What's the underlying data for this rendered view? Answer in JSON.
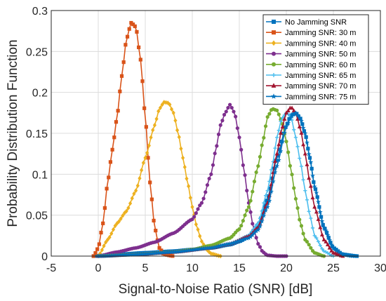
{
  "chart_data": {
    "type": "line",
    "xlabel": "Signal-to-Noise Ratio (SNR) [dB]",
    "ylabel": "Probability Distribution Function",
    "xlim": [
      -5,
      30
    ],
    "ylim": [
      0,
      0.3
    ],
    "xticks": [
      -5,
      0,
      5,
      10,
      15,
      20,
      25,
      30
    ],
    "yticks": [
      0,
      0.05,
      0.1,
      0.15,
      0.2,
      0.25,
      0.3
    ],
    "xtick_labels": [
      "-5",
      "0",
      "5",
      "10",
      "15",
      "20",
      "25",
      "30"
    ],
    "ytick_labels": [
      "0",
      "0.05",
      "0.1",
      "0.15",
      "0.2",
      "0.25",
      "0.3"
    ],
    "grid": true,
    "legend_position": "top-right",
    "series": [
      {
        "name": "No Jamming SNR",
        "color": "#0072BD",
        "marker": "square",
        "x": [
          -0.5,
          2,
          5,
          8,
          10,
          12,
          14,
          15,
          16,
          17,
          18,
          19,
          20,
          20.5,
          21,
          21.5,
          22,
          22.5,
          23,
          24,
          25,
          26,
          27.5
        ],
        "y": [
          0,
          0.002,
          0.004,
          0.006,
          0.008,
          0.01,
          0.014,
          0.018,
          0.024,
          0.038,
          0.07,
          0.12,
          0.16,
          0.172,
          0.175,
          0.168,
          0.15,
          0.12,
          0.085,
          0.035,
          0.01,
          0.002,
          0
        ]
      },
      {
        "name": "Jamming SNR: 30 m",
        "color": "#D95319",
        "marker": "square",
        "x": [
          -0.5,
          0,
          0.5,
          1,
          1.5,
          2,
          2.5,
          3,
          3.5,
          4,
          4.5,
          5,
          5.5,
          6,
          6.5,
          7,
          8
        ],
        "y": [
          0,
          0.01,
          0.04,
          0.09,
          0.13,
          0.17,
          0.22,
          0.265,
          0.285,
          0.28,
          0.24,
          0.17,
          0.09,
          0.035,
          0.01,
          0.002,
          0
        ]
      },
      {
        "name": "Jamming SNR: 40 m",
        "color": "#EDB120",
        "marker": "diamond",
        "x": [
          0,
          1,
          2,
          3,
          4,
          5,
          6,
          6.5,
          7,
          7.5,
          8,
          8.5,
          9,
          9.5,
          10,
          10.5,
          11,
          11.5,
          12,
          13
        ],
        "y": [
          0,
          0.02,
          0.04,
          0.055,
          0.08,
          0.12,
          0.16,
          0.18,
          0.188,
          0.187,
          0.175,
          0.15,
          0.12,
          0.09,
          0.06,
          0.035,
          0.018,
          0.008,
          0.003,
          0
        ]
      },
      {
        "name": "Jamming SNR: 50 m",
        "color": "#7E2F8E",
        "marker": "circle",
        "x": [
          0,
          2,
          4,
          6,
          8,
          10,
          11,
          12,
          12.5,
          13,
          13.5,
          14,
          14.5,
          15,
          15.5,
          16,
          16.5,
          17,
          17.5,
          18,
          19,
          20
        ],
        "y": [
          0,
          0.005,
          0.01,
          0.017,
          0.028,
          0.045,
          0.065,
          0.1,
          0.13,
          0.16,
          0.175,
          0.185,
          0.175,
          0.145,
          0.105,
          0.065,
          0.035,
          0.015,
          0.005,
          0.001,
          0,
          0
        ]
      },
      {
        "name": "Jamming SNR: 60 m",
        "color": "#77AC30",
        "marker": "circle",
        "x": [
          0,
          4,
          8,
          10,
          12,
          14,
          15,
          16,
          17,
          17.5,
          18,
          18.5,
          19,
          19.5,
          20,
          20.5,
          21,
          21.5,
          22,
          23,
          24
        ],
        "y": [
          0,
          0.002,
          0.005,
          0.008,
          0.013,
          0.022,
          0.033,
          0.06,
          0.11,
          0.14,
          0.17,
          0.18,
          0.178,
          0.165,
          0.14,
          0.105,
          0.07,
          0.04,
          0.02,
          0.004,
          0
        ]
      },
      {
        "name": "Jamming SNR: 65 m",
        "color": "#4DBEEE",
        "marker": "plus",
        "x": [
          0,
          4,
          8,
          12,
          14,
          16,
          17,
          18,
          18.5,
          19,
          19.5,
          20,
          20.5,
          21,
          21.5,
          22,
          22.5,
          23,
          24,
          25
        ],
        "y": [
          0,
          0.002,
          0.005,
          0.01,
          0.015,
          0.025,
          0.04,
          0.08,
          0.11,
          0.145,
          0.168,
          0.175,
          0.17,
          0.145,
          0.115,
          0.08,
          0.05,
          0.025,
          0.006,
          0
        ]
      },
      {
        "name": "Jamming SNR: 70 m",
        "color": "#A2142F",
        "marker": "triangle",
        "x": [
          0,
          4,
          8,
          12,
          14,
          16,
          17,
          18,
          19,
          19.5,
          20,
          20.5,
          21,
          21.5,
          22,
          22.5,
          23,
          24,
          25,
          26
        ],
        "y": [
          0,
          0.002,
          0.005,
          0.01,
          0.015,
          0.024,
          0.035,
          0.065,
          0.125,
          0.155,
          0.175,
          0.182,
          0.175,
          0.155,
          0.125,
          0.09,
          0.06,
          0.02,
          0.004,
          0
        ]
      },
      {
        "name": "Jamming SNR: 75 m",
        "color": "#0072BD",
        "marker": "star",
        "x": [
          0,
          4,
          8,
          12,
          14,
          16,
          17,
          18,
          19,
          20,
          20.5,
          21,
          21.5,
          22,
          22.5,
          23,
          24,
          25,
          26,
          27
        ],
        "y": [
          0,
          0.002,
          0.005,
          0.01,
          0.015,
          0.022,
          0.032,
          0.06,
          0.11,
          0.158,
          0.17,
          0.175,
          0.168,
          0.15,
          0.12,
          0.085,
          0.035,
          0.01,
          0.002,
          0
        ]
      }
    ]
  }
}
